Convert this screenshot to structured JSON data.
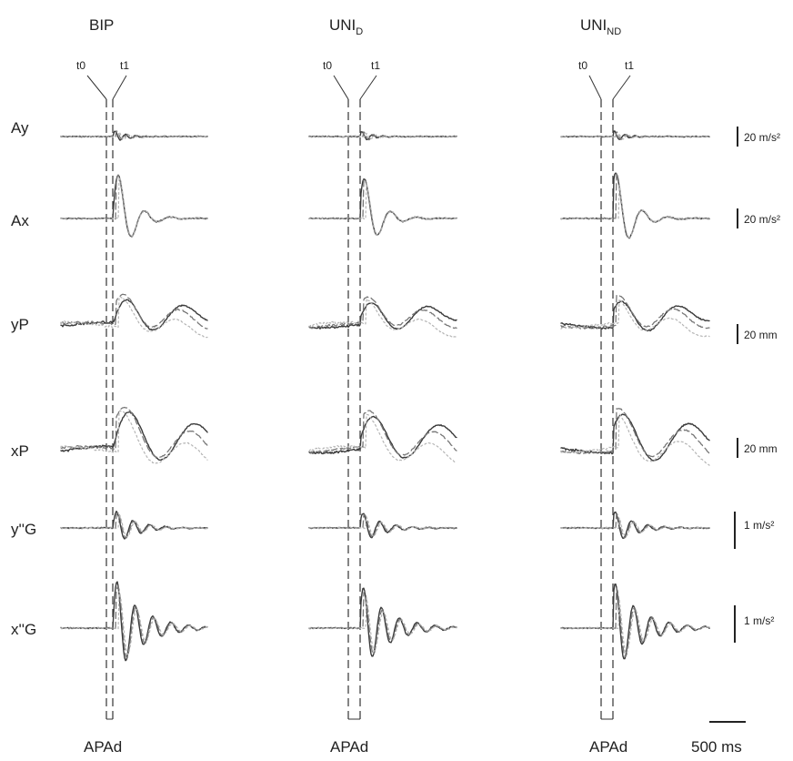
{
  "chart_data": {
    "type": "line",
    "columns": [
      {
        "key": "bip",
        "title_main": "BIP",
        "title_sub": "",
        "marker_t0": "t0",
        "marker_t1": "t1",
        "bottom_label": "APAd"
      },
      {
        "key": "unid",
        "title_main": "UNI",
        "title_sub": "D",
        "marker_t0": "t0",
        "marker_t1": "t1",
        "bottom_label": "APAd"
      },
      {
        "key": "unind",
        "title_main": "UNI",
        "title_sub": "ND",
        "marker_t0": "t0",
        "marker_t1": "t1",
        "bottom_label": "APAd"
      }
    ],
    "rows": [
      {
        "key": "ay",
        "label": "Ay",
        "scale": "20 m/s²"
      },
      {
        "key": "ax",
        "label": "Ax",
        "scale": "20 m/s²"
      },
      {
        "key": "yp",
        "label": "yP",
        "scale": "20 mm"
      },
      {
        "key": "xp",
        "label": "xP",
        "scale": "20 mm"
      },
      {
        "key": "ypg",
        "label": "y''G",
        "scale": "1 m/s²"
      },
      {
        "key": "xpg",
        "label": "x''G",
        "scale": "1 m/s²"
      }
    ],
    "time_scale_label": "500 ms",
    "series_styles": [
      {
        "color": "#3a3a3a",
        "dash": "",
        "width": 1.4
      },
      {
        "color": "#777777",
        "dash": "7 4",
        "width": 1.3
      },
      {
        "color": "#b5b5b5",
        "dash": "2 3",
        "width": 1.2
      }
    ]
  }
}
